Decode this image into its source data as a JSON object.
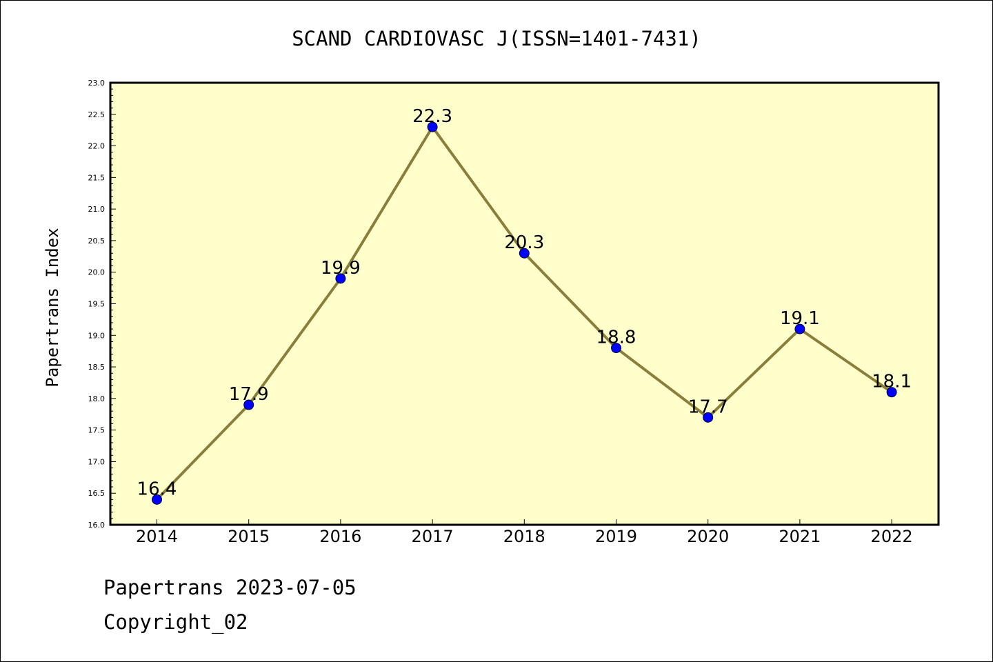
{
  "chart_data": {
    "type": "line",
    "title": "SCAND CARDIOVASC J(ISSN=1401-7431)",
    "ylabel": "Papertrans Index",
    "xlabel": "",
    "categories": [
      "2014",
      "2015",
      "2016",
      "2017",
      "2018",
      "2019",
      "2020",
      "2021",
      "2022"
    ],
    "series": [
      {
        "values": [
          16.4,
          17.9,
          19.9,
          22.3,
          20.3,
          18.8,
          17.7,
          19.1,
          18.1
        ],
        "labels": [
          "16.4",
          "17.9",
          "19.9",
          "22.3",
          "20.3",
          "18.8",
          "17.7",
          "19.1",
          "18.1"
        ]
      }
    ],
    "ylim": [
      16.0,
      23.0
    ],
    "yticks": [
      "16.0",
      "16.5",
      "17.0",
      "17.5",
      "18.0",
      "18.5",
      "19.0",
      "19.5",
      "20.0",
      "20.5",
      "21.0",
      "21.5",
      "22.0",
      "22.5",
      "23.0"
    ],
    "grid": false,
    "legend": "none",
    "colors": {
      "plot_background": "#ffffcc",
      "line": "#8b7d3a",
      "marker": "#0000ff"
    }
  },
  "footer": {
    "line1": "Papertrans 2023-07-05",
    "line2": "Copyright_02"
  }
}
